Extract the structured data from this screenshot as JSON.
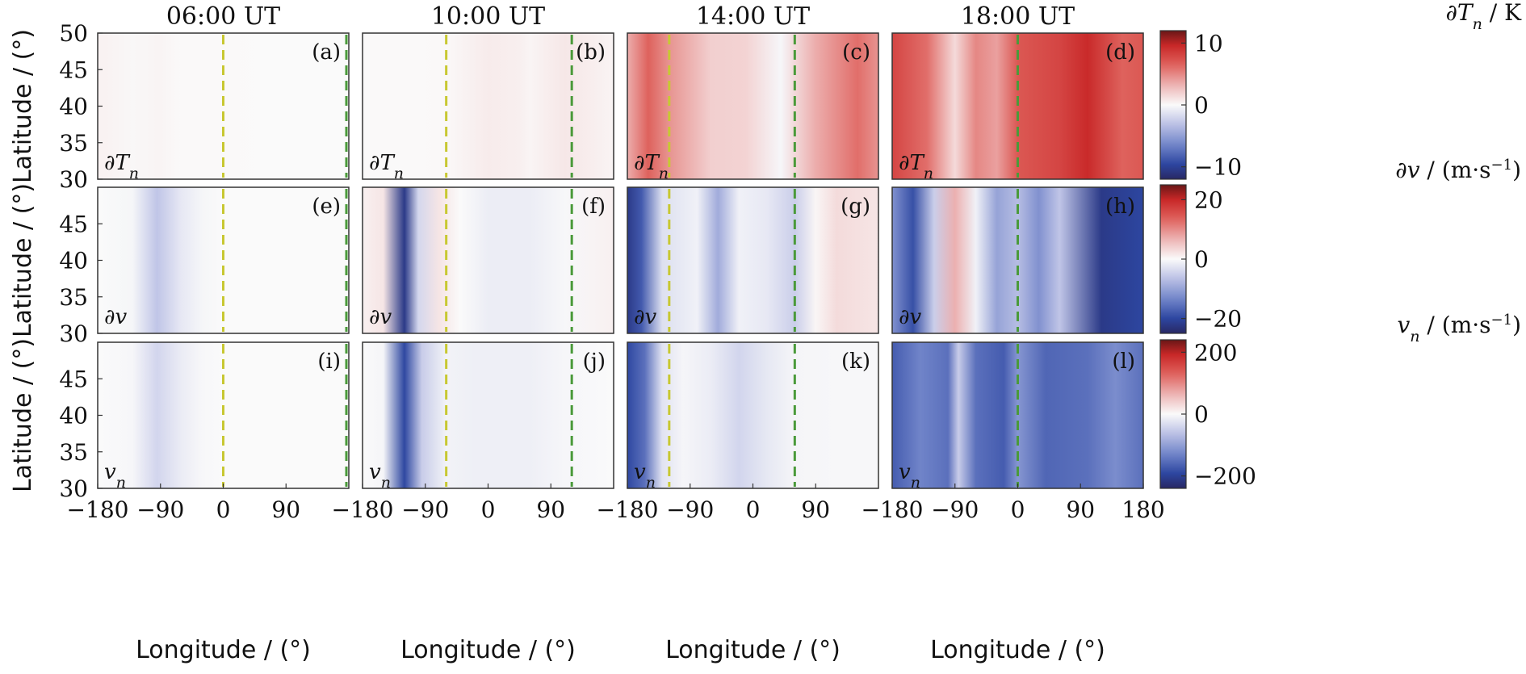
{
  "chart_data": {
    "type": "heatmap",
    "columns": [
      "06:00 UT",
      "10:00 UT",
      "14:00 UT",
      "18:00 UT"
    ],
    "panel_letters": [
      "(a)",
      "(b)",
      "(c)",
      "(d)",
      "(e)",
      "(f)",
      "(g)",
      "(h)",
      "(i)",
      "(j)",
      "(k)",
      "(l)"
    ],
    "row_variables": [
      "∂T",
      "∂v",
      "v"
    ],
    "row_variable_subscripts": [
      "n",
      "",
      "n"
    ],
    "xlabel": "Longitude / (°)",
    "ylabel": "Latitude / (°)",
    "xlim": [
      -180,
      180
    ],
    "xticks": [
      "−180",
      "−90",
      "0",
      "90"
    ],
    "xticks_last": [
      "−180",
      "−90",
      "0",
      "90",
      "180"
    ],
    "ylim": [
      30,
      50
    ],
    "yticks_top": [
      "50",
      "45",
      "40",
      "35",
      "30"
    ],
    "yticks_lower": [
      "45",
      "40",
      "35",
      "30"
    ],
    "terminators": [
      {
        "column": "06:00 UT",
        "lines": [
          {
            "lon": 0,
            "color": "#c8c832"
          },
          {
            "lon": 180,
            "color": "#4a9a3a"
          }
        ]
      },
      {
        "column": "10:00 UT",
        "lines": [
          {
            "lon": -60,
            "color": "#c8c832"
          },
          {
            "lon": 120,
            "color": "#4a9a3a"
          }
        ]
      },
      {
        "column": "14:00 UT",
        "lines": [
          {
            "lon": -120,
            "color": "#c8c832"
          },
          {
            "lon": 60,
            "color": "#4a9a3a"
          }
        ]
      },
      {
        "column": "18:00 UT",
        "lines": [
          {
            "lon": 0,
            "color": "#4a9a3a"
          }
        ]
      }
    ],
    "colorbars": [
      {
        "label_var": "∂T",
        "label_sub": "n",
        "label_unit": " / K",
        "ticks": [
          "10",
          "0",
          "−10"
        ],
        "range": [
          -12,
          12
        ]
      },
      {
        "label_var": "∂v",
        "label_sub": "",
        "label_unit": " / (m·s",
        "label_exp": "−1",
        "label_close": ")",
        "ticks": [
          "20",
          "0",
          "−20"
        ],
        "range": [
          -25,
          25
        ]
      },
      {
        "label_var": "v",
        "label_sub": "n",
        "label_unit": " / (m·s",
        "label_exp": "−1",
        "label_close": ")",
        "ticks": [
          "200",
          "0",
          "−200"
        ],
        "range": [
          -240,
          240
        ]
      }
    ],
    "fields": [
      [
        [
          [
            -170,
            0.35
          ],
          [
            -130,
            0.15
          ],
          [
            -90,
            0.3
          ],
          [
            -60,
            0.05
          ],
          [
            -30,
            0.03
          ],
          [
            0,
            0.03
          ],
          [
            90,
            0.0
          ],
          [
            180,
            0.0
          ]
        ],
        [
          [
            -170,
            0.05
          ],
          [
            -100,
            0.05
          ],
          [
            -60,
            0.1
          ],
          [
            0,
            0.7
          ],
          [
            45,
            0.5
          ],
          [
            60,
            0.3
          ],
          [
            110,
            0.9
          ],
          [
            150,
            0.55
          ],
          [
            180,
            0.3
          ]
        ],
        [
          [
            -180,
            3.5
          ],
          [
            -150,
            6.5
          ],
          [
            -120,
            4.5
          ],
          [
            -60,
            2.0
          ],
          [
            -10,
            1.8
          ],
          [
            40,
            -0.2
          ],
          [
            90,
            3.5
          ],
          [
            150,
            6.0
          ],
          [
            180,
            4.5
          ]
        ],
        [
          [
            -180,
            8
          ],
          [
            -130,
            6
          ],
          [
            -90,
            1.5
          ],
          [
            -60,
            5
          ],
          [
            -30,
            4
          ],
          [
            0,
            7
          ],
          [
            60,
            8
          ],
          [
            100,
            9.5
          ],
          [
            150,
            6.5
          ],
          [
            180,
            7
          ]
        ]
      ],
      [
        [
          [
            -180,
            0
          ],
          [
            -130,
            -0.5
          ],
          [
            -95,
            -6
          ],
          [
            -60,
            -2
          ],
          [
            -30,
            -0.5
          ],
          [
            0,
            0
          ],
          [
            180,
            0
          ]
        ],
        [
          [
            -180,
            1
          ],
          [
            -150,
            2
          ],
          [
            -120,
            -22
          ],
          [
            -100,
            -4
          ],
          [
            -70,
            2
          ],
          [
            -40,
            0
          ],
          [
            0,
            -1.5
          ],
          [
            60,
            -1.5
          ],
          [
            110,
            -0.3
          ],
          [
            180,
            1
          ]
        ],
        [
          [
            -180,
            -22
          ],
          [
            -160,
            -18
          ],
          [
            -130,
            -3
          ],
          [
            -80,
            -1
          ],
          [
            -50,
            -9
          ],
          [
            -20,
            -1
          ],
          [
            20,
            -2
          ],
          [
            60,
            -5
          ],
          [
            90,
            0.5
          ],
          [
            120,
            3
          ],
          [
            180,
            2
          ]
        ],
        [
          [
            -180,
            -12
          ],
          [
            -150,
            -19
          ],
          [
            -120,
            -5
          ],
          [
            -90,
            7
          ],
          [
            -60,
            -1
          ],
          [
            -30,
            -10
          ],
          [
            0,
            -7
          ],
          [
            30,
            -12
          ],
          [
            60,
            -6
          ],
          [
            120,
            -22
          ],
          [
            180,
            -20
          ]
        ]
      ],
      [
        [
          [
            -180,
            0
          ],
          [
            -130,
            -4
          ],
          [
            -95,
            -40
          ],
          [
            -60,
            -15
          ],
          [
            -30,
            -3
          ],
          [
            0,
            0
          ],
          [
            180,
            0
          ]
        ],
        [
          [
            -180,
            0
          ],
          [
            -150,
            -5
          ],
          [
            -120,
            -190
          ],
          [
            -95,
            -50
          ],
          [
            -60,
            -8
          ],
          [
            -20,
            -12
          ],
          [
            60,
            -12
          ],
          [
            110,
            -4
          ],
          [
            180,
            0
          ]
        ],
        [
          [
            -180,
            -190
          ],
          [
            -155,
            -150
          ],
          [
            -130,
            -25
          ],
          [
            -100,
            -5
          ],
          [
            -60,
            -15
          ],
          [
            -20,
            -40
          ],
          [
            20,
            -20
          ],
          [
            60,
            -5
          ],
          [
            120,
            -3
          ],
          [
            180,
            -3
          ]
        ],
        [
          [
            -180,
            -170
          ],
          [
            -140,
            -130
          ],
          [
            -100,
            -150
          ],
          [
            -85,
            -50
          ],
          [
            -60,
            -150
          ],
          [
            -20,
            -170
          ],
          [
            0,
            -110
          ],
          [
            40,
            -160
          ],
          [
            100,
            -150
          ],
          [
            140,
            -120
          ],
          [
            180,
            -150
          ]
        ]
      ]
    ]
  }
}
